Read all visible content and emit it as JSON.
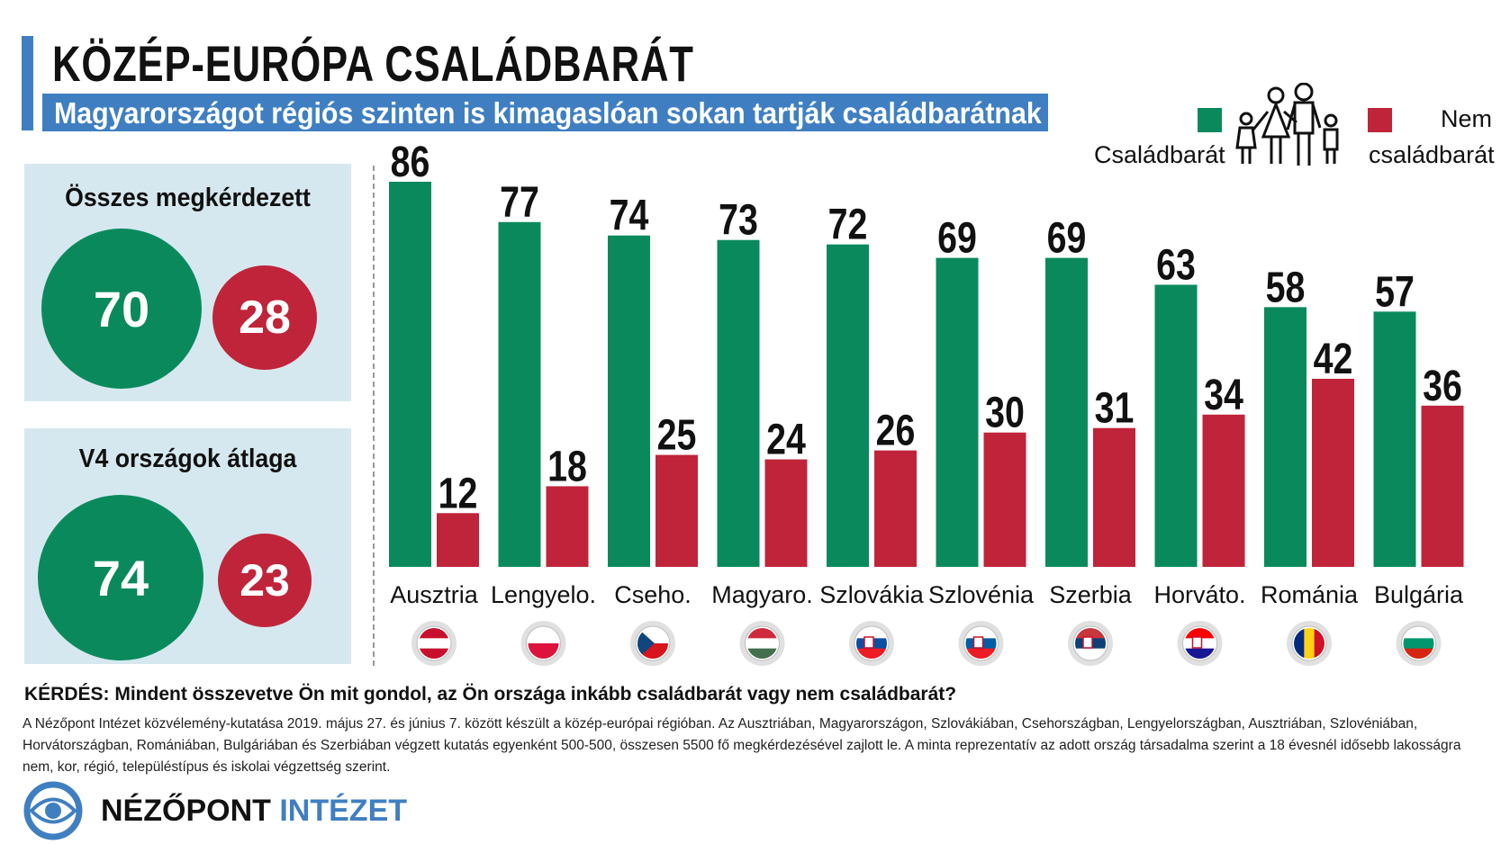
{
  "header": {
    "title": "KÖZÉP-EURÓPA CSALÁDBARÁT",
    "subtitle": "Magyarországot régiós szinten is kimagaslóan sokan tartják családbarátnak"
  },
  "legend": {
    "positive_label": "Családbarát",
    "negative_label_line1": "Nem",
    "negative_label_line2": "családbarát",
    "icon": "family-icon"
  },
  "summary": {
    "all": {
      "title": "Összes megkérdezett",
      "positive": "70",
      "negative": "28"
    },
    "v4": {
      "title": "V4 országok átlaga",
      "positive": "74",
      "negative": "23"
    }
  },
  "colors": {
    "green": "#0a8a5c",
    "red": "#c0243a",
    "blue": "#3f7fc1",
    "panel": "#d6e8ef"
  },
  "chart_data": {
    "type": "bar",
    "categories": [
      "Ausztria",
      "Lengyelo.",
      "Cseho.",
      "Magyaro.",
      "Szlovákia",
      "Szlovénia",
      "Szerbia",
      "Horváto.",
      "Románia",
      "Bulgária"
    ],
    "series": [
      {
        "name": "Családbarát",
        "color": "#0a8a5c",
        "values": [
          86,
          77,
          74,
          73,
          72,
          69,
          69,
          63,
          58,
          57
        ]
      },
      {
        "name": "Nem családbarát",
        "color": "#c0243a",
        "values": [
          12,
          18,
          25,
          24,
          26,
          30,
          31,
          34,
          42,
          36
        ]
      }
    ],
    "ylim": [
      0,
      86
    ],
    "legend": "top-right",
    "grid": false
  },
  "flags": [
    "austria-flag-icon",
    "poland-flag-icon",
    "czechia-flag-icon",
    "hungary-flag-icon",
    "slovakia-flag-icon",
    "slovenia-flag-icon",
    "serbia-flag-icon",
    "croatia-flag-icon",
    "romania-flag-icon",
    "bulgaria-flag-icon"
  ],
  "footer": {
    "question": "KÉRDÉS: Mindent összevetve Ön mit gondol, az Ön országa inkább családbarát vagy nem családbarát?",
    "note": "A Nézőpont Intézet közvélemény-kutatása 2019. május 27. és június 7. között készült a közép-európai régióban. Az Ausztriában, Magyarországon, Szlovákiában, Csehországban, Lengyelországban, Ausztriában, Szlovéniában, Horvátországban, Romániában, Bulgáriában és Szerbiában végzett kutatás egyenként 500-500, összesen 5500 fő megkérdezésével zajlott le. A minta reprezentatív az adott ország társadalma szerint a 18 évesnél idősebb lakosságra nem, kor, régió, településtípus és iskolai végzettség szerint.",
    "logo_part1": "NÉZŐPONT",
    "logo_part2": "INTÉZET"
  }
}
